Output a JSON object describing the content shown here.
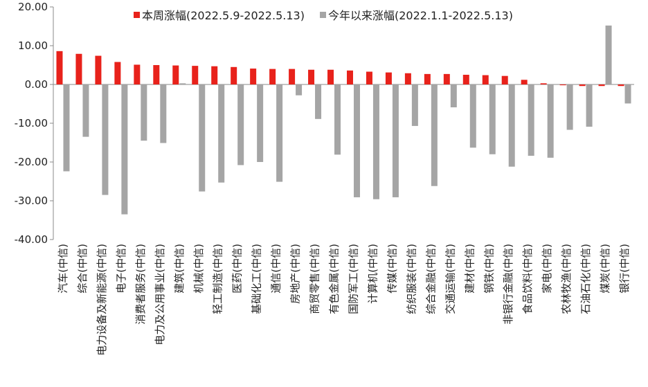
{
  "chart_data": {
    "type": "bar",
    "categories": [
      "汽车(中信)",
      "综合(中信)",
      "电力设备及新能源(中信)",
      "电子(中信)",
      "消费者服务(中信)",
      "电力及公用事业(中信)",
      "建筑(中信)",
      "机械(中信)",
      "轻工制造(中信)",
      "医药(中信)",
      "基础化工(中信)",
      "通信(中信)",
      "房地产(中信)",
      "商贸零售(中信)",
      "有色金属(中信)",
      "国防军工(中信)",
      "计算机(中信)",
      "传媒(中信)",
      "纺织服装(中信)",
      "综合金融(中信)",
      "交通运输(中信)",
      "建材(中信)",
      "钢铁(中信)",
      "非银行金融(中信)",
      "食品饮料(中信)",
      "家电(中信)",
      "农林牧渔(中信)",
      "石油石化(中信)",
      "煤炭(中信)",
      "银行(中信)"
    ],
    "series": [
      {
        "name": "本周涨幅(2022.5.9-2022.5.13)",
        "color": "#e8221b",
        "values": [
          8.6,
          7.9,
          7.4,
          5.8,
          5.1,
          5.0,
          4.9,
          4.8,
          4.7,
          4.5,
          4.1,
          4.0,
          4.0,
          3.8,
          3.8,
          3.6,
          3.3,
          3.1,
          2.9,
          2.7,
          2.7,
          2.5,
          2.4,
          2.2,
          1.2,
          0.3,
          -0.2,
          -0.4,
          -0.4,
          -0.4
        ]
      },
      {
        "name": "今年以来涨幅(2022.1.1-2022.5.13)",
        "color": "#a5a5a5",
        "values": [
          -22.4,
          -13.5,
          -28.5,
          -33.5,
          -14.5,
          -15.1,
          0.3,
          -27.6,
          -25.3,
          -20.8,
          -20.0,
          -25.1,
          -2.8,
          -8.9,
          -18.1,
          -29.1,
          -29.6,
          -29.1,
          -10.7,
          -26.2,
          -5.9,
          -16.3,
          -18.0,
          -21.2,
          -18.4,
          -18.9,
          -11.7,
          -10.9,
          15.2,
          -4.9
        ]
      }
    ],
    "yticks": [
      "20.00",
      "10.00",
      "0.00",
      "-10.00",
      "-20.00",
      "-30.00",
      "-40.00"
    ],
    "ylim": [
      -40,
      20
    ],
    "legend": "top-center",
    "grid": false
  }
}
